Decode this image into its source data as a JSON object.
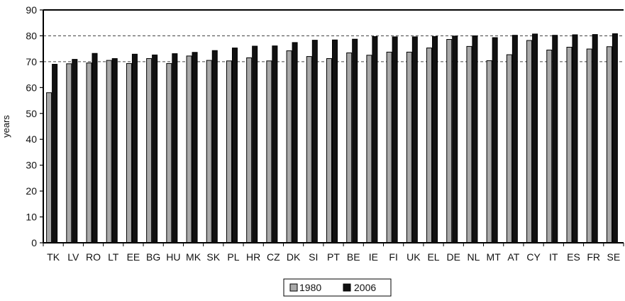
{
  "chart_data": {
    "type": "bar",
    "title": "",
    "xlabel": "",
    "ylabel": "years",
    "ylim": [
      0,
      90
    ],
    "yticks": [
      0,
      10,
      20,
      30,
      40,
      50,
      60,
      70,
      80,
      90
    ],
    "grid": "dashed horizontal at 70 and 80",
    "legend": "bottom-center",
    "categories": [
      "TK",
      "LV",
      "RO",
      "LT",
      "EE",
      "BG",
      "HU",
      "MK",
      "SK",
      "PL",
      "HR",
      "CZ",
      "DK",
      "SI",
      "PT",
      "BE",
      "IE",
      "FI",
      "UK",
      "EL",
      "DE",
      "NL",
      "MT",
      "AT",
      "CY",
      "IT",
      "ES",
      "FR",
      "SE"
    ],
    "series": [
      {
        "name": "1980",
        "color": "#a9a9a9",
        "values": [
          58.0,
          69.2,
          69.5,
          70.5,
          69.3,
          71.2,
          69.3,
          72.2,
          70.5,
          70.3,
          71.5,
          70.3,
          74.2,
          72.0,
          71.2,
          73.4,
          72.5,
          73.7,
          73.7,
          75.3,
          78.6,
          75.9,
          70.4,
          72.7,
          78.2,
          74.5,
          75.6,
          74.9,
          75.8
        ]
      },
      {
        "name": "2006",
        "color": "#111111",
        "values": [
          69.0,
          70.9,
          73.2,
          71.2,
          72.9,
          72.6,
          73.1,
          73.6,
          74.3,
          75.3,
          76.0,
          76.1,
          77.4,
          78.3,
          78.4,
          78.7,
          79.7,
          79.6,
          79.6,
          79.7,
          79.9,
          80.0,
          79.3,
          80.2,
          80.7,
          80.2,
          80.4,
          80.5,
          80.8
        ]
      }
    ]
  }
}
